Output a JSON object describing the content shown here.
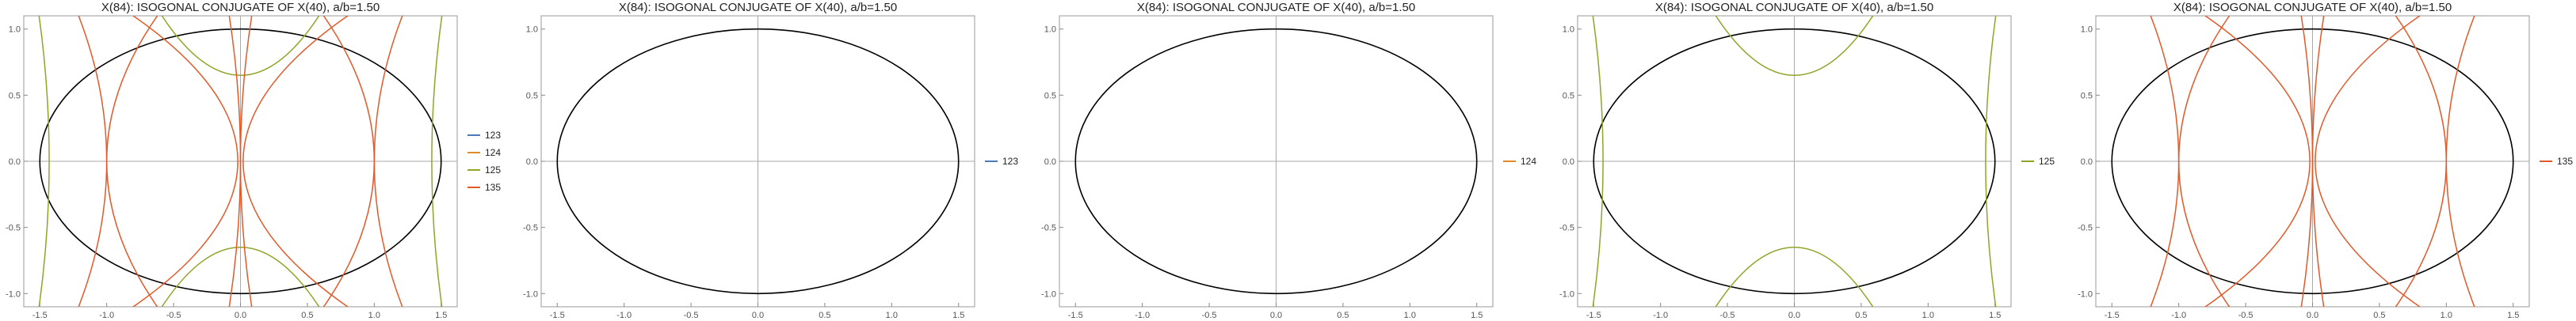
{
  "figure": {
    "panel_count": 5
  },
  "chart_data": [
    {
      "type": "line",
      "title": "X(84): ISOGONAL CONJUGATE OF X(40), a/b=1.50",
      "xlim": [
        -1.62,
        1.62
      ],
      "ylim": [
        -1.1,
        1.1
      ],
      "xticks": [
        -1.5,
        -1.0,
        -0.5,
        0.0,
        0.5,
        1.0,
        1.5
      ],
      "yticks": [
        -1.0,
        -0.5,
        0.0,
        0.5,
        1.0
      ],
      "ellipse": {
        "a": 1.5,
        "b": 1.0,
        "color": "#000000"
      },
      "legend_position": "right",
      "series": [
        {
          "name": "123",
          "color": "#4a7ab8",
          "visible_curves": false
        },
        {
          "name": "124",
          "color": "#e08a2c",
          "visible_curves": false
        },
        {
          "name": "125",
          "color": "#8fa528"
        },
        {
          "name": "135",
          "color": "#e05a2a"
        }
      ]
    },
    {
      "type": "line",
      "title": "X(84): ISOGONAL CONJUGATE OF X(40), a/b=1.50",
      "xlim": [
        -1.62,
        1.62
      ],
      "ylim": [
        -1.1,
        1.1
      ],
      "xticks": [
        -1.5,
        -1.0,
        -0.5,
        0.0,
        0.5,
        1.0,
        1.5
      ],
      "yticks": [
        -1.0,
        -0.5,
        0.0,
        0.5,
        1.0
      ],
      "ellipse": {
        "a": 1.5,
        "b": 1.0,
        "color": "#000000"
      },
      "legend_position": "right",
      "series": [
        {
          "name": "123",
          "color": "#4a7ab8",
          "visible_curves": false
        }
      ]
    },
    {
      "type": "line",
      "title": "X(84): ISOGONAL CONJUGATE OF X(40), a/b=1.50",
      "xlim": [
        -1.62,
        1.62
      ],
      "ylim": [
        -1.1,
        1.1
      ],
      "xticks": [
        -1.5,
        -1.0,
        -0.5,
        0.0,
        0.5,
        1.0,
        1.5
      ],
      "yticks": [
        -1.0,
        -0.5,
        0.0,
        0.5,
        1.0
      ],
      "ellipse": {
        "a": 1.5,
        "b": 1.0,
        "color": "#000000"
      },
      "legend_position": "right",
      "series": [
        {
          "name": "124",
          "color": "#e08a2c",
          "visible_curves": false
        }
      ]
    },
    {
      "type": "line",
      "title": "X(84): ISOGONAL CONJUGATE OF X(40), a/b=1.50",
      "xlim": [
        -1.62,
        1.62
      ],
      "ylim": [
        -1.1,
        1.1
      ],
      "xticks": [
        -1.5,
        -1.0,
        -0.5,
        0.0,
        0.5,
        1.0,
        1.5
      ],
      "yticks": [
        -1.0,
        -0.5,
        0.0,
        0.5,
        1.0
      ],
      "ellipse": {
        "a": 1.5,
        "b": 1.0,
        "color": "#000000"
      },
      "legend_position": "right",
      "series": [
        {
          "name": "125",
          "color": "#8fa528"
        }
      ]
    },
    {
      "type": "line",
      "title": "X(84): ISOGONAL CONJUGATE OF X(40), a/b=1.50",
      "xlim": [
        -1.62,
        1.62
      ],
      "ylim": [
        -1.1,
        1.1
      ],
      "xticks": [
        -1.5,
        -1.0,
        -0.5,
        0.0,
        0.5,
        1.0,
        1.5
      ],
      "yticks": [
        -1.0,
        -0.5,
        0.0,
        0.5,
        1.0
      ],
      "ellipse": {
        "a": 1.5,
        "b": 1.0,
        "color": "#000000"
      },
      "legend_position": "right",
      "series": [
        {
          "name": "135",
          "color": "#e05a2a"
        }
      ]
    }
  ],
  "curve_shapes": {
    "125": [
      {
        "kind": "parabola",
        "vertex": [
          0.0,
          0.65
        ],
        "opens": "up",
        "halfwidth": 0.6,
        "reach": 1.12
      },
      {
        "kind": "parabola",
        "vertex": [
          0.0,
          -0.65
        ],
        "opens": "down",
        "halfwidth": 0.6,
        "reach": -1.12
      },
      {
        "kind": "side",
        "x_mid": 1.43,
        "x_edge": 1.52
      },
      {
        "kind": "side",
        "x_mid": -1.43,
        "x_edge": -1.52
      }
    ],
    "135": [
      {
        "kind": "arc",
        "x_top": 0.1,
        "x_mid": 0.0,
        "x_bot": 0.1
      },
      {
        "kind": "arc",
        "x_top": -0.1,
        "x_mid": 0.0,
        "x_bot": -0.1
      },
      {
        "kind": "arc",
        "x_top": 0.55,
        "x_mid": 1.0,
        "x_bot": 0.55
      },
      {
        "kind": "arc",
        "x_top": -0.55,
        "x_mid": -1.0,
        "x_bot": -0.55
      },
      {
        "kind": "arc",
        "x_top": 0.95,
        "x_mid": 0.02,
        "x_bot": 0.95
      },
      {
        "kind": "arc",
        "x_top": -0.95,
        "x_mid": -0.02,
        "x_bot": -0.95
      },
      {
        "kind": "arc",
        "x_top": 1.25,
        "x_mid": 1.0,
        "x_bot": 1.25
      },
      {
        "kind": "arc",
        "x_top": -1.25,
        "x_mid": -1.0,
        "x_bot": -1.25
      }
    ]
  }
}
